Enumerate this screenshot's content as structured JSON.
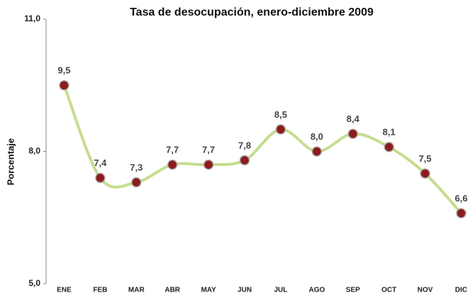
{
  "chart_data": {
    "type": "line",
    "title": "Tasa de desocupación, enero-diciembre 2009",
    "y_label": "Porcentaje",
    "categories": [
      "ENE",
      "FEB",
      "MAR",
      "ABR",
      "MAY",
      "JUN",
      "JUL",
      "AGO",
      "SEP",
      "OCT",
      "NOV",
      "DIC"
    ],
    "series": [
      {
        "name": "Tasa de desocupación",
        "line_color": "#c5dd8e",
        "color": "#8e1c1c",
        "values": [
          9.5,
          7.4,
          7.3,
          7.7,
          7.7,
          7.8,
          8.5,
          8.0,
          8.4,
          8.1,
          7.5,
          6.6
        ],
        "value_labels": [
          "9,5",
          "7,4",
          "7,3",
          "7,7",
          "7,7",
          "7,8",
          "8,5",
          "8,0",
          "8,4",
          "8,1",
          "7,5",
          "6,6"
        ]
      }
    ],
    "ylim": [
      5,
      11
    ],
    "yticks": [
      {
        "value": 5,
        "label": "5,0"
      },
      {
        "value": 8,
        "label": "8,0"
      },
      {
        "value": 11,
        "label": "11,0"
      }
    ],
    "smooth": true,
    "grid": false
  }
}
